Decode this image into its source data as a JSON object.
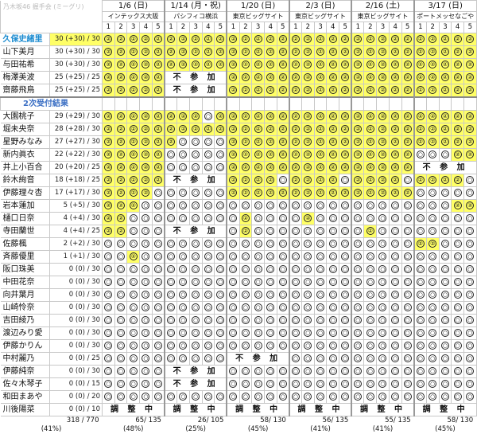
{
  "caption": "乃木坂46 握手会 (ミーグリ)",
  "events": [
    {
      "date": "1/6 (日)",
      "venue": "インテックス大阪"
    },
    {
      "date": "1/14 (月・祝)",
      "venue": "パシフィコ横浜"
    },
    {
      "date": "1/20 (日)",
      "venue": "東京ビッグサイト"
    },
    {
      "date": "2/3 (日)",
      "venue": "東京ビッグサイト"
    },
    {
      "date": "2/16 (土)",
      "venue": "東京ビッグサイト"
    },
    {
      "date": "3/17 (日)",
      "venue": "ポートメッセなごや"
    }
  ],
  "slot_numbers": [
    "1",
    "2",
    "3",
    "4",
    "5"
  ],
  "second_section_label": "2次受付結果",
  "notes": {
    "absent": "不 参 加",
    "adjusting": "調 整 中"
  },
  "symbol_sold": "②",
  "symbol_open": "○",
  "members_top": [
    {
      "name": "久保史緒里",
      "score": "30 (+30) / 30",
      "highlight": true
    },
    {
      "name": "山下美月",
      "score": "30 (+30) / 30"
    },
    {
      "name": "与田祐希",
      "score": "30 (+30) / 30"
    },
    {
      "name": "梅澤美波",
      "score": "25 (+25) / 25"
    },
    {
      "name": "齋藤飛鳥",
      "score": "25 (+25) / 25"
    }
  ],
  "members_bottom": [
    {
      "name": "大園桃子",
      "score": "29 (+29) / 30"
    },
    {
      "name": "堀未央奈",
      "score": "28 (+28) / 30"
    },
    {
      "name": "星野みなみ",
      "score": "27 (+27) / 30"
    },
    {
      "name": "新内眞衣",
      "score": "22 (+22) / 30"
    },
    {
      "name": "井上小百合",
      "score": "20 (+20) / 25"
    },
    {
      "name": "鈴木絢音",
      "score": "18 (+18) / 25"
    },
    {
      "name": "伊藤理々杏",
      "score": "17 (+17) / 30"
    },
    {
      "name": "岩本蓮加",
      "score": "5 (+5) / 30"
    },
    {
      "name": "樋口日奈",
      "score": "4 (+4) / 30"
    },
    {
      "name": "寺田蘭世",
      "score": "4 (+4) / 25"
    },
    {
      "name": "佐藤楓",
      "score": "2 (+2) / 30"
    },
    {
      "name": "斉藤優里",
      "score": "1 (+1) / 30"
    },
    {
      "name": "阪口珠美",
      "score": "0 (0) / 30"
    },
    {
      "name": "中田花奈",
      "score": "0 (0) / 30"
    },
    {
      "name": "向井葉月",
      "score": "0 (0) / 30"
    },
    {
      "name": "山崎怜奈",
      "score": "0 (0) / 30"
    },
    {
      "name": "吉田綾乃",
      "score": "0 (0) / 30"
    },
    {
      "name": "渡辺みり愛",
      "score": "0 (0) / 30"
    },
    {
      "name": "伊藤かりん",
      "score": "0 (0) / 30"
    },
    {
      "name": "中村麗乃",
      "score": "0 (0) / 25"
    },
    {
      "name": "伊藤純奈",
      "score": "0 (0) / 30"
    },
    {
      "name": "佐々木琴子",
      "score": "0 (0) / 15"
    },
    {
      "name": "和田まあや",
      "score": "0 (0) / 20"
    },
    {
      "name": "川後陽菜",
      "score": "0 (0) / 10"
    }
  ],
  "totals": {
    "all": "318 / 770",
    "all_pct": "(41%)",
    "per_event": [
      {
        "count": "65/ 135",
        "pct": "(48%)"
      },
      {
        "count": "26/ 105",
        "pct": "(25%)"
      },
      {
        "count": "58/ 130",
        "pct": "(45%)"
      },
      {
        "count": "56/ 135",
        "pct": "(41%)"
      },
      {
        "count": "55/ 135",
        "pct": "(41%)"
      },
      {
        "count": "58/ 130",
        "pct": "(45%)"
      }
    ]
  },
  "colors": {
    "highlight": "#ffff66",
    "accent_name": "#1a8bd0",
    "section_label": "#3b6fc4"
  }
}
